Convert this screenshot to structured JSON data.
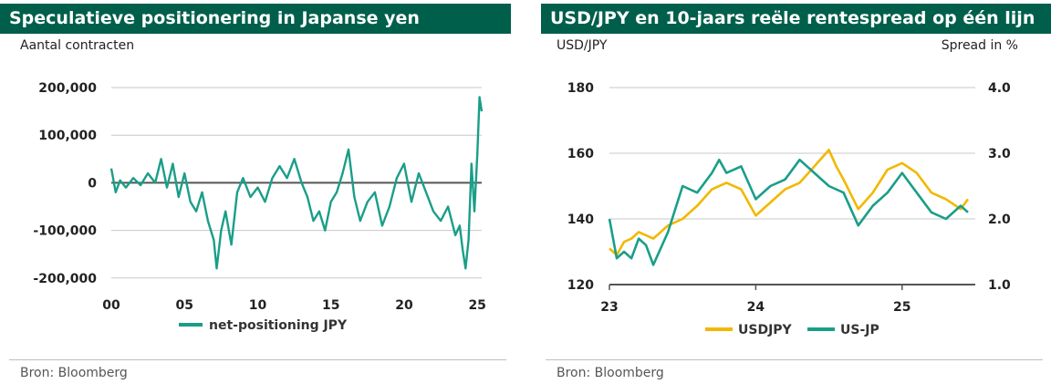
{
  "left_panel": {
    "title": "Speculatieve positionering in Japanse yen",
    "subtitle": "Aantal contracten",
    "source": "Bron: Bloomberg"
  },
  "right_panel": {
    "title": "USD/JPY  en 10-jaars reële rentespread op één lijn",
    "left_axis_label": "USD/JPY",
    "right_axis_label": "Spread in %",
    "source": "Bron: Bloomberg"
  },
  "colors": {
    "header": "#005F4B",
    "teal": "#1A9E89",
    "gold": "#F2B800",
    "grid": "#c8c8c8"
  },
  "chart_data": [
    {
      "type": "line",
      "xlim": [
        0,
        25.3
      ],
      "ylim": [
        -210000,
        200000
      ],
      "yticks": [
        200000,
        100000,
        0,
        -100000,
        -200000
      ],
      "ytick_labels": [
        "200,000",
        "100,000",
        "0",
        "-100,000",
        "-200,000"
      ],
      "xticks": [
        0,
        5,
        10,
        15,
        20,
        25
      ],
      "xtick_labels": [
        "00",
        "05",
        "10",
        "15",
        "20",
        "25"
      ],
      "series": [
        {
          "name": "net-positioning JPY",
          "color": "#1A9E89",
          "x": [
            0,
            0.3,
            0.6,
            1,
            1.5,
            2,
            2.5,
            3,
            3.4,
            3.8,
            4.2,
            4.6,
            5,
            5.4,
            5.8,
            6.2,
            6.6,
            7,
            7.2,
            7.5,
            7.8,
            8.2,
            8.6,
            9,
            9.5,
            10,
            10.5,
            11,
            11.5,
            12,
            12.5,
            13,
            13.4,
            13.8,
            14.2,
            14.6,
            15,
            15.4,
            15.8,
            16.2,
            16.6,
            17,
            17.5,
            18,
            18.5,
            19,
            19.5,
            20,
            20.5,
            21,
            21.5,
            22,
            22.5,
            23,
            23.5,
            23.8,
            24,
            24.2,
            24.4,
            24.6,
            24.8,
            25,
            25.15,
            25.3
          ],
          "y": [
            30000,
            -20000,
            5000,
            -10000,
            10000,
            -5000,
            20000,
            0,
            50000,
            -10000,
            40000,
            -30000,
            20000,
            -40000,
            -60000,
            -20000,
            -80000,
            -120000,
            -180000,
            -100000,
            -60000,
            -130000,
            -20000,
            10000,
            -30000,
            -10000,
            -40000,
            10000,
            35000,
            10000,
            50000,
            0,
            -30000,
            -80000,
            -60000,
            -100000,
            -40000,
            -20000,
            20000,
            70000,
            -30000,
            -80000,
            -40000,
            -20000,
            -90000,
            -50000,
            10000,
            40000,
            -40000,
            20000,
            -20000,
            -60000,
            -80000,
            -50000,
            -110000,
            -90000,
            -140000,
            -180000,
            -120000,
            40000,
            -60000,
            60000,
            180000,
            150000
          ]
        }
      ]
    },
    {
      "type": "line",
      "xlim": [
        0,
        2.5
      ],
      "ylim": [
        120,
        180
      ],
      "y2lim": [
        1.0,
        4.0
      ],
      "yticks": [
        120,
        140,
        160,
        180
      ],
      "ytick_labels": [
        "120",
        "140",
        "160",
        "180"
      ],
      "y2ticks": [
        1.0,
        2.0,
        3.0,
        4.0
      ],
      "y2tick_labels": [
        "1.0",
        "2.0",
        "3.0",
        "4.0"
      ],
      "xticks": [
        0,
        1,
        2
      ],
      "xtick_labels": [
        "23",
        "24",
        "25"
      ],
      "series": [
        {
          "name": "USDJPY",
          "axis": "left",
          "color": "#F2B800",
          "x": [
            0,
            0.05,
            0.1,
            0.15,
            0.2,
            0.3,
            0.4,
            0.5,
            0.6,
            0.7,
            0.8,
            0.9,
            1.0,
            1.1,
            1.2,
            1.3,
            1.4,
            1.5,
            1.55,
            1.6,
            1.7,
            1.8,
            1.9,
            2.0,
            2.1,
            2.2,
            2.3,
            2.4,
            2.45
          ],
          "y": [
            131,
            129,
            133,
            134,
            136,
            134,
            138,
            140,
            144,
            149,
            151,
            149,
            141,
            145,
            149,
            151,
            156,
            161,
            156,
            152,
            143,
            148,
            155,
            157,
            154,
            148,
            146,
            143,
            146
          ]
        },
        {
          "name": "US-JP",
          "axis": "right",
          "color": "#1A9E89",
          "x": [
            0,
            0.05,
            0.1,
            0.15,
            0.2,
            0.25,
            0.3,
            0.4,
            0.5,
            0.6,
            0.7,
            0.75,
            0.8,
            0.9,
            1.0,
            1.1,
            1.2,
            1.3,
            1.4,
            1.5,
            1.6,
            1.7,
            1.8,
            1.9,
            2.0,
            2.1,
            2.2,
            2.3,
            2.4,
            2.45
          ],
          "y": [
            2.0,
            1.4,
            1.5,
            1.4,
            1.7,
            1.6,
            1.3,
            1.8,
            2.5,
            2.4,
            2.7,
            2.9,
            2.7,
            2.8,
            2.3,
            2.5,
            2.6,
            2.9,
            2.7,
            2.5,
            2.4,
            1.9,
            2.2,
            2.4,
            2.7,
            2.4,
            2.1,
            2.0,
            2.2,
            2.1
          ]
        }
      ]
    }
  ]
}
